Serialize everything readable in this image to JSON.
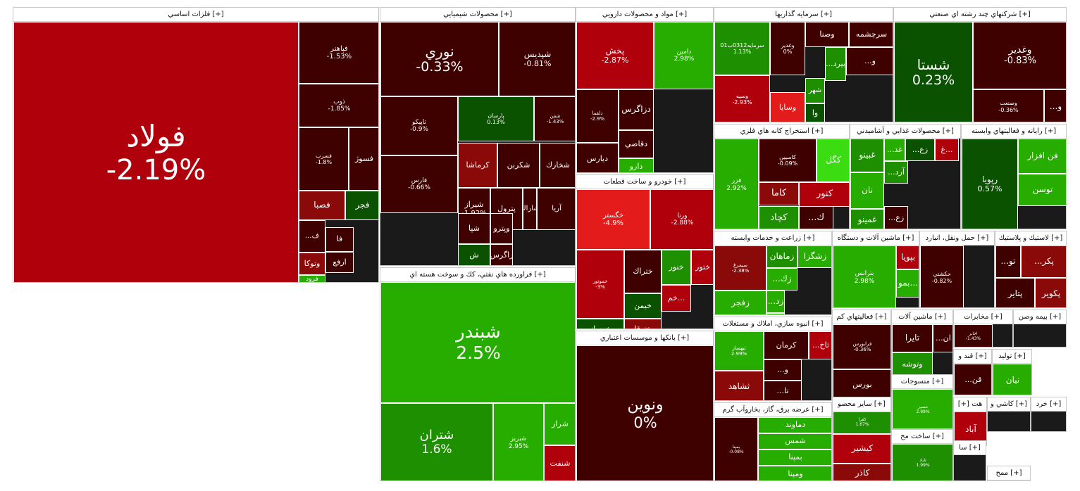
{
  "colors": {
    "dark_red": "#3f0000",
    "mid_red": "#8a0a0a",
    "red": "#b0000b",
    "bright_red": "#e31b1b",
    "dark_green": "#0a5200",
    "mid_green": "#1e8f00",
    "green": "#26ad00",
    "bright_green": "#3bdd12"
  },
  "sectors": [
    {
      "title": "فلزات اساسي [+]",
      "tiles": [
        {
          "name": "فولاد",
          "change": "-2.19%",
          "color": "red"
        },
        {
          "name": "فپاهنر",
          "change": "-1.53%",
          "color": "dark_red"
        },
        {
          "name": "ذوب",
          "change": "-1.85%",
          "color": "dark_red"
        },
        {
          "name": "فسرب",
          "change": "-1.8%",
          "color": "dark_red"
        },
        {
          "name": "فسوژ",
          "change": "",
          "color": "dark_red"
        },
        {
          "name": "فصبا",
          "change": "",
          "color": "mid_red"
        },
        {
          "name": "فجر",
          "change": "",
          "color": "dark_green"
        },
        {
          "name": "...ف",
          "change": "",
          "color": "dark_red"
        },
        {
          "name": "فا",
          "change": "",
          "color": "dark_red"
        },
        {
          "name": "وتوكا",
          "change": "",
          "color": "mid_red"
        },
        {
          "name": "ارفع",
          "change": "",
          "color": "dark_red"
        },
        {
          "name": "فرود",
          "change": "",
          "color": "green"
        }
      ]
    },
    {
      "title": "محصولات شيميايي [+]",
      "tiles": [
        {
          "name": "نوري",
          "change": "-0.33%",
          "color": "dark_red"
        },
        {
          "name": "شپديس",
          "change": "-0.81%",
          "color": "dark_red"
        },
        {
          "name": "تاپيكو",
          "change": "-0.9%",
          "color": "dark_red"
        },
        {
          "name": "پارسان",
          "change": "0.13%",
          "color": "dark_green"
        },
        {
          "name": "شفن",
          "change": "-1.43%",
          "color": "dark_red"
        },
        {
          "name": "فارس",
          "change": "-0.66%",
          "color": "dark_red"
        },
        {
          "name": "كرماشا",
          "change": "",
          "color": "mid_red"
        },
        {
          "name": "شكربن",
          "change": "",
          "color": "dark_red"
        },
        {
          "name": "شخارك",
          "change": "",
          "color": "dark_red"
        },
        {
          "name": "شيراز",
          "change": "-1.92%",
          "color": "dark_red"
        },
        {
          "name": "پترول",
          "change": "",
          "color": "dark_red"
        },
        {
          "name": "شاراك",
          "change": "",
          "color": "dark_red"
        },
        {
          "name": "آريا",
          "change": "",
          "color": "dark_red"
        },
        {
          "name": "شپا",
          "change": "",
          "color": "dark_red"
        },
        {
          "name": "وپترو",
          "change": "",
          "color": "dark_red"
        },
        {
          "name": "ش",
          "change": "",
          "color": "dark_green"
        },
        {
          "name": "زاگرس",
          "change": "",
          "color": "dark_red"
        },
        {
          "name": "شا",
          "change": "",
          "color": "dark_green"
        }
      ]
    },
    {
      "title": "فراورده هاي نفتي، كك و سوخت هسته اي [+]",
      "tiles": [
        {
          "name": "شبندر",
          "change": "2.5%",
          "color": "green"
        },
        {
          "name": "شتران",
          "change": "1.6%",
          "color": "mid_green"
        },
        {
          "name": "شبريز",
          "change": "2.95%",
          "color": "green"
        },
        {
          "name": "شراز",
          "change": "",
          "color": "green"
        },
        {
          "name": "شنفت",
          "change": "",
          "color": "red"
        }
      ]
    },
    {
      "title": "مواد و محصولات دارويي [+]",
      "tiles": [
        {
          "name": "پخش",
          "change": "-2.87%",
          "color": "red"
        },
        {
          "name": "دامين",
          "change": "2.98%",
          "color": "green"
        },
        {
          "name": "دلقما",
          "change": "-2.9%",
          "color": "dark_red"
        },
        {
          "name": "دزاگرس",
          "change": "",
          "color": "dark_red"
        },
        {
          "name": "دقاضي",
          "change": "",
          "color": "dark_red"
        },
        {
          "name": "ديارس",
          "change": "",
          "color": "dark_red"
        },
        {
          "name": "دارو",
          "change": "",
          "color": "green"
        }
      ]
    },
    {
      "title": "خودرو و ساخت قطعات [+]",
      "tiles": [
        {
          "name": "خگستر",
          "change": "-4.9%",
          "color": "bright_red"
        },
        {
          "name": "ورنا",
          "change": "-2.88%",
          "color": "red"
        },
        {
          "name": "خموتور",
          "change": "-3%",
          "color": "red"
        },
        {
          "name": "ختراك",
          "change": "",
          "color": "dark_red"
        },
        {
          "name": "خنور",
          "change": "",
          "color": "mid_green"
        },
        {
          "name": "ختور",
          "change": "",
          "color": "red"
        },
        {
          "name": "خيمن",
          "change": "",
          "color": "dark_green"
        },
        {
          "name": "خم...",
          "change": "",
          "color": "red"
        },
        {
          "name": "ختوقا",
          "change": "",
          "color": "mid_red"
        },
        {
          "name": "خوساز",
          "change": "",
          "color": "dark_green"
        }
      ]
    },
    {
      "title": "بانكها و موسسات اعتباري [+]",
      "tiles": [
        {
          "name": "ونوين",
          "change": "0%",
          "color": "dark_red"
        }
      ]
    },
    {
      "title": "سرمايه گذاريها [+]",
      "tiles": [
        {
          "name": "سرمايه0312ب01",
          "change": "1.13%",
          "color": "mid_green"
        },
        {
          "name": "وغدير",
          "change": "0%",
          "color": "dark_red"
        },
        {
          "name": "وصنا",
          "change": "",
          "color": "dark_red"
        },
        {
          "name": "سرچشمه",
          "change": "",
          "color": "dark_red"
        },
        {
          "name": "وسپه",
          "change": "-2.93%",
          "color": "red"
        },
        {
          "name": "وسايا",
          "change": "",
          "color": "bright_red"
        },
        {
          "name": "شهر",
          "change": "",
          "color": "mid_green"
        },
        {
          "name": "...بيرد",
          "change": "",
          "color": "mid_green"
        },
        {
          "name": "...و",
          "change": "",
          "color": "dark_red"
        },
        {
          "name": "وا",
          "change": "",
          "color": "dark_green"
        }
      ]
    },
    {
      "title": "شركتهاي چند رشته اي صنعتي [+]",
      "tiles": [
        {
          "name": "شستا",
          "change": "0.23%",
          "color": "dark_green"
        },
        {
          "name": "وغدير",
          "change": "-0.83%",
          "color": "dark_red"
        },
        {
          "name": "وصنعت",
          "change": "-0.36%",
          "color": "dark_red"
        },
        {
          "name": "...و",
          "change": "",
          "color": "dark_red"
        }
      ]
    },
    {
      "title": "استخراج كانه هاي فلزي [+]",
      "tiles": [
        {
          "name": "فزر",
          "change": "2.92%",
          "color": "green"
        },
        {
          "name": "كاسپين",
          "change": "-0.09%",
          "color": "dark_red"
        },
        {
          "name": "كگل",
          "change": "",
          "color": "bright_green"
        },
        {
          "name": "كاما",
          "change": "",
          "color": "mid_red"
        },
        {
          "name": "كنور",
          "change": "",
          "color": "red"
        },
        {
          "name": "كچاد",
          "change": "",
          "color": "mid_green"
        },
        {
          "name": "...ك",
          "change": "",
          "color": "dark_red"
        }
      ]
    },
    {
      "title": "محصولات غذايي و آشاميدني [+]",
      "tiles": [
        {
          "name": "غبينو",
          "change": "",
          "color": "mid_green"
        },
        {
          "name": "...غد",
          "change": "",
          "color": "green"
        },
        {
          "name": "...زع",
          "change": "",
          "color": "dark_green"
        },
        {
          "name": "غ...",
          "change": "",
          "color": "red"
        },
        {
          "name": "نان",
          "change": "",
          "color": "green"
        },
        {
          "name": "...آرد",
          "change": "",
          "color": "mid_green"
        },
        {
          "name": "غمينو",
          "change": "",
          "color": "mid_green"
        },
        {
          "name": "...زع",
          "change": "",
          "color": "dark_red"
        }
      ]
    },
    {
      "title": "رايانه و فعاليتهاي وابسته [+]",
      "tiles": [
        {
          "name": "فن افزار",
          "change": "",
          "color": "green"
        },
        {
          "name": "رپويا",
          "change": "0.57%",
          "color": "dark_green"
        },
        {
          "name": "توسن",
          "change": "",
          "color": "green"
        }
      ]
    },
    {
      "title": "زراعت و خدمات وابسته [+]",
      "tiles": [
        {
          "name": "سيمرغ",
          "change": "-2.38%",
          "color": "mid_red"
        },
        {
          "name": "زماهان",
          "change": "",
          "color": "mid_green"
        },
        {
          "name": "زشگزا",
          "change": "",
          "color": "green"
        },
        {
          "name": "...زك",
          "change": "",
          "color": "green"
        },
        {
          "name": "...زد",
          "change": "",
          "color": "green"
        },
        {
          "name": "زفجر",
          "change": "",
          "color": "green"
        },
        {
          "name": "زبينا",
          "change": "",
          "color": "green"
        }
      ]
    },
    {
      "title": "ماشين آلات و دستگاه [+]",
      "tiles": [
        {
          "name": "بترانس",
          "change": "2.98%",
          "color": "green"
        },
        {
          "name": "بپويا",
          "change": "",
          "color": "red"
        },
        {
          "name": "بمو...",
          "change": "",
          "color": "green"
        }
      ]
    },
    {
      "title": "حمل ونقل، انبارد [+]",
      "tiles": [
        {
          "name": "حكشتي",
          "change": "-0.82%",
          "color": "dark_red"
        }
      ]
    },
    {
      "title": "لاستيك و پلاستيك [+]",
      "tiles": [
        {
          "name": "...تو",
          "change": "",
          "color": "dark_red"
        },
        {
          "name": "...پكر",
          "change": "",
          "color": "mid_red"
        },
        {
          "name": "پتاير",
          "change": "",
          "color": "dark_red"
        },
        {
          "name": "پكوير",
          "change": "",
          "color": "mid_red"
        }
      ]
    },
    {
      "title": "انبوه سازي، املاك و مستغلات [+]",
      "tiles": [
        {
          "name": "ثبهساز",
          "change": "2.99%",
          "color": "green"
        },
        {
          "name": "كرمان",
          "change": "",
          "color": "dark_red"
        },
        {
          "name": "...ثاخ",
          "change": "",
          "color": "red"
        },
        {
          "name": "ثشاهد",
          "change": "",
          "color": "mid_red"
        },
        {
          "name": "...و",
          "change": "",
          "color": "dark_red"
        },
        {
          "name": "...تا",
          "change": "",
          "color": "dark_red"
        }
      ]
    },
    {
      "title": "فعاليتهاي كم [+]",
      "tiles": [
        {
          "name": "فرابورس",
          "change": "-0.36%",
          "color": "dark_red"
        },
        {
          "name": "بورس",
          "change": "",
          "color": "dark_red"
        }
      ]
    },
    {
      "title": "ماشين آلات [+]",
      "tiles": [
        {
          "name": "تايرا",
          "change": "",
          "color": "dark_red"
        },
        {
          "name": "...ان",
          "change": "",
          "color": "dark_red"
        },
        {
          "name": "وتوشه",
          "change": "",
          "color": "mid_green"
        }
      ]
    },
    {
      "title": "مخابرات [+]",
      "tiles": [
        {
          "name": "اخابر",
          "change": "-1.43%",
          "color": "dark_red"
        }
      ]
    },
    {
      "title": "بيمه وصن [+]",
      "tiles": []
    },
    {
      "title": "قند و [+]",
      "tiles": [
        {
          "name": "...قن",
          "change": "",
          "color": "dark_red"
        }
      ]
    },
    {
      "title": "توليد [+]",
      "tiles": [
        {
          "name": "نيان",
          "change": "",
          "color": "green"
        }
      ]
    },
    {
      "title": "عرضه برق، گاز، بخاروآب گرم [+]",
      "tiles": [
        {
          "name": "بمپنا",
          "change": "-0.08%",
          "color": "dark_red"
        },
        {
          "name": "دماوند",
          "change": "",
          "color": "green"
        },
        {
          "name": "شمس",
          "change": "",
          "color": "green"
        },
        {
          "name": "بمپنا",
          "change": "",
          "color": "green"
        },
        {
          "name": "ومپنا",
          "change": "",
          "color": "green"
        }
      ]
    },
    {
      "title": "ساير محصو [+]",
      "tiles": [
        {
          "name": "كفرا",
          "change": "1.67%",
          "color": "mid_green"
        },
        {
          "name": "كيشير",
          "change": "",
          "color": "red"
        },
        {
          "name": "كاذر",
          "change": "",
          "color": "mid_red"
        }
      ]
    },
    {
      "title": "منسوجات [+]",
      "tiles": [
        {
          "name": "ننصير",
          "change": "2.99%",
          "color": "green"
        }
      ]
    },
    {
      "title": "ساخت مح [+]",
      "tiles": [
        {
          "name": "ثاباد",
          "change": "1.99%",
          "color": "mid_green"
        }
      ]
    },
    {
      "title": "[+] هت",
      "tiles": [
        {
          "name": "آباد",
          "change": "",
          "color": "red"
        }
      ]
    },
    {
      "title": "كاشي و [+]",
      "tiles": []
    },
    {
      "title": "خرد [+]",
      "tiles": []
    },
    {
      "title": "سا [+]",
      "tiles": []
    },
    {
      "title": "ممح [+]",
      "tiles": []
    }
  ]
}
